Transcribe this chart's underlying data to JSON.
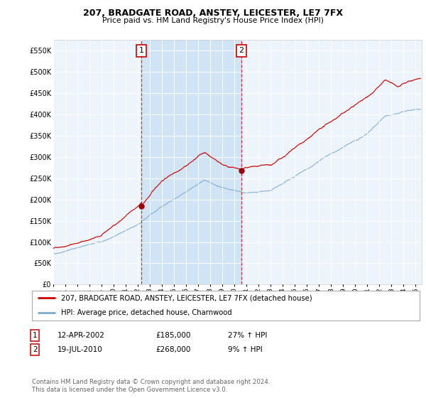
{
  "title": "207, BRADGATE ROAD, ANSTEY, LEICESTER, LE7 7FX",
  "subtitle": "Price paid vs. HM Land Registry's House Price Index (HPI)",
  "ylabel_ticks": [
    "£0",
    "£50K",
    "£100K",
    "£150K",
    "£200K",
    "£250K",
    "£300K",
    "£350K",
    "£400K",
    "£450K",
    "£500K",
    "£550K"
  ],
  "ytick_values": [
    0,
    50000,
    100000,
    150000,
    200000,
    250000,
    300000,
    350000,
    400000,
    450000,
    500000,
    550000
  ],
  "ylim": [
    0,
    575000
  ],
  "xlim_start": 1995.0,
  "xlim_end": 2025.5,
  "bg_color": "#eef4fb",
  "outer_bg_color": "#ffffff",
  "shade_color": "#d0e4f5",
  "red_color": "#cc0000",
  "blue_color": "#7aabcf",
  "purchase1_x": 2002.28,
  "purchase1_y": 185000,
  "purchase2_x": 2010.55,
  "purchase2_y": 268000,
  "legend_line1": "207, BRADGATE ROAD, ANSTEY, LEICESTER, LE7 7FX (detached house)",
  "legend_line2": "HPI: Average price, detached house, Charnwood",
  "table_row1": [
    "1",
    "12-APR-2002",
    "£185,000",
    "27% ↑ HPI"
  ],
  "table_row2": [
    "2",
    "19-JUL-2010",
    "£268,000",
    "9% ↑ HPI"
  ],
  "footnote": "Contains HM Land Registry data © Crown copyright and database right 2024.\nThis data is licensed under the Open Government Licence v3.0.",
  "xtick_years": [
    1995,
    1996,
    1997,
    1998,
    1999,
    2000,
    2001,
    2002,
    2003,
    2004,
    2005,
    2006,
    2007,
    2008,
    2009,
    2010,
    2011,
    2012,
    2013,
    2014,
    2015,
    2016,
    2017,
    2018,
    2019,
    2020,
    2021,
    2022,
    2023,
    2024,
    2025
  ]
}
